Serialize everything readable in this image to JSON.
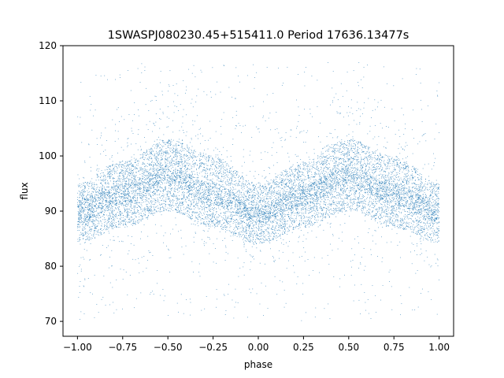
{
  "chart_data": {
    "type": "scatter",
    "title": "1SWASPJ080230.45+515411.0 Period 17636.13477s",
    "xlabel": "phase",
    "ylabel": "flux",
    "xlim": [
      -1.08,
      1.08
    ],
    "ylim": [
      67.3,
      120
    ],
    "xticks": [
      "−1.00",
      "−0.75",
      "−0.50",
      "−0.25",
      "0.00",
      "0.25",
      "0.50",
      "0.75",
      "1.00"
    ],
    "xtick_values": [
      -1.0,
      -0.75,
      -0.5,
      -0.25,
      0.0,
      0.25,
      0.5,
      0.75,
      1.0
    ],
    "yticks": [
      "70",
      "80",
      "90",
      "100",
      "110",
      "120"
    ],
    "ytick_values": [
      70,
      80,
      90,
      100,
      110,
      120
    ],
    "grid": false,
    "point_color": "#1f77b4",
    "x_range": [
      -1.0,
      1.0
    ],
    "bands": [
      {
        "x": [
          -1.0,
          -0.75,
          -0.5,
          -0.25,
          0.0,
          0.25,
          0.5,
          0.75,
          1.0
        ],
        "upper": [
          95,
          99,
          103,
          100,
          95,
          99,
          103,
          100,
          95
        ],
        "lower": [
          88,
          91,
          95,
          91,
          88,
          91,
          95,
          91,
          88
        ]
      },
      {
        "x": [
          -1.0,
          -0.75,
          -0.5,
          -0.25,
          0.0,
          0.25,
          0.5,
          0.75,
          1.0
        ],
        "upper": [
          92,
          95,
          98,
          95,
          91,
          95,
          98,
          95,
          92
        ],
        "lower": [
          84,
          87,
          90,
          87,
          84,
          87,
          90,
          87,
          84
        ]
      }
    ],
    "outlier_range": [
      70,
      117
    ]
  }
}
